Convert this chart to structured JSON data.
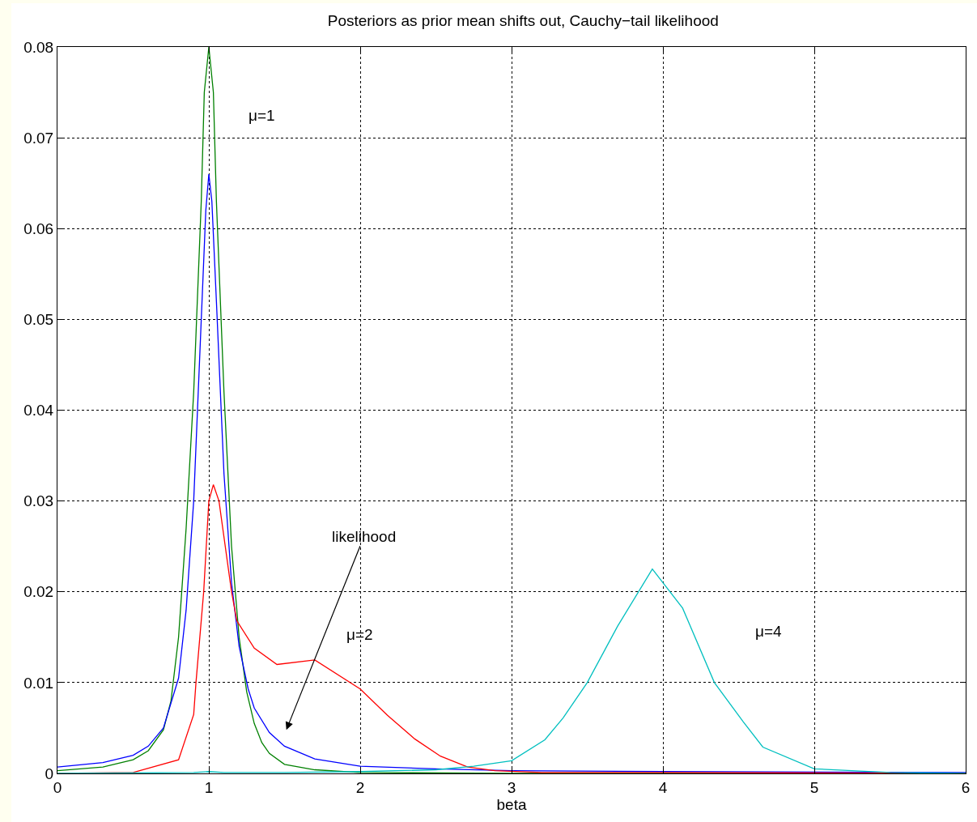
{
  "chart_data": {
    "type": "line",
    "title": "Posteriors as prior mean shifts out, Cauchy−tail likelihood",
    "xlabel": "beta",
    "xlim": [
      0,
      6
    ],
    "xticks": [
      0,
      1,
      2,
      3,
      4,
      5,
      6
    ],
    "ylim": [
      0,
      0.08
    ],
    "yticks": [
      0,
      0.01,
      0.02,
      0.03,
      0.04,
      0.05,
      0.06,
      0.07,
      0.08
    ],
    "grid": true,
    "marker": "none",
    "line_style": "solid",
    "annotations": [
      "μ=1",
      "likelihood",
      "μ=2",
      "μ=4"
    ],
    "series": [
      {
        "color": "#008000",
        "x": [
          0,
          0.3,
          0.5,
          0.6,
          0.7,
          0.75,
          0.8,
          0.85,
          0.9,
          0.95,
          0.97,
          1.0,
          1.03,
          1.05,
          1.1,
          1.15,
          1.2,
          1.25,
          1.3,
          1.35,
          1.4,
          1.5,
          1.7,
          2,
          3,
          6
        ],
        "values": [
          0.0003,
          0.0007,
          0.0015,
          0.0025,
          0.0048,
          0.008,
          0.015,
          0.027,
          0.042,
          0.063,
          0.075,
          0.08,
          0.075,
          0.063,
          0.042,
          0.025,
          0.015,
          0.009,
          0.0055,
          0.0034,
          0.0022,
          0.001,
          0.0004,
          0.0001,
          0,
          0
        ]
      },
      {
        "color": "#0000ff",
        "x": [
          0,
          0.3,
          0.5,
          0.6,
          0.7,
          0.8,
          0.85,
          0.9,
          0.95,
          0.98,
          1.0,
          1.02,
          1.05,
          1.1,
          1.15,
          1.2,
          1.26,
          1.3,
          1.4,
          1.5,
          1.7,
          2,
          2.5,
          3,
          4,
          6
        ],
        "values": [
          0.0007,
          0.0012,
          0.002,
          0.003,
          0.005,
          0.0105,
          0.018,
          0.03,
          0.05,
          0.062,
          0.066,
          0.063,
          0.052,
          0.033,
          0.021,
          0.014,
          0.0093,
          0.0072,
          0.0045,
          0.003,
          0.0016,
          0.0008,
          0.0005,
          0.0003,
          0.0002,
          0.0001
        ]
      },
      {
        "color": "#ff0000",
        "x": [
          0,
          0.5,
          0.8,
          0.9,
          0.915,
          0.966,
          1.0,
          1.03,
          1.067,
          1.15,
          1.185,
          1.3,
          1.45,
          1.7,
          2.0,
          2.18,
          2.36,
          2.53,
          2.71,
          2.89,
          3.2,
          4,
          6
        ],
        "values": [
          0,
          0.0001,
          0.0015,
          0.0065,
          0.01,
          0.02,
          0.03,
          0.0318,
          0.03,
          0.02,
          0.0168,
          0.0138,
          0.012,
          0.0125,
          0.0093,
          0.0064,
          0.0038,
          0.0019,
          0.0007,
          0.0003,
          0.0001,
          0.0001,
          0
        ]
      },
      {
        "color": "#00bfbf",
        "x": [
          0,
          0.9,
          1.0,
          1.1,
          1.5,
          2,
          2.5,
          2.75,
          3,
          3.22,
          3.34,
          3.5,
          3.7,
          3.93,
          4.13,
          4.34,
          4.53,
          4.66,
          5,
          5.5,
          6
        ],
        "values": [
          0,
          0.0001,
          0.0002,
          0.0001,
          0.0001,
          0.0002,
          0.0004,
          0.0008,
          0.0014,
          0.0037,
          0.0061,
          0.01,
          0.0162,
          0.0225,
          0.0182,
          0.01,
          0.0057,
          0.0029,
          0.0005,
          0.0001,
          0
        ]
      }
    ]
  }
}
